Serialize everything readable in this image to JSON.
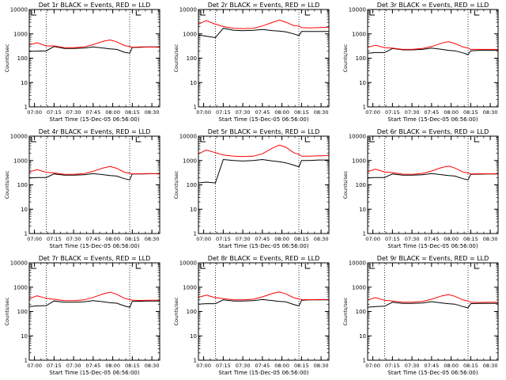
{
  "colors": {
    "background": "#ffffff",
    "axes": "#000000",
    "events": "#000000",
    "lld": "#ff0000"
  },
  "chart_data": [
    {
      "type": "line",
      "title": "Det 1r BLACK = Events, RED = LLD",
      "xlabel": "Start Time (15-Dec-05 06:56:00)",
      "ylabel": "Counts/sec",
      "xticks": [
        "07:00",
        "07:15",
        "07:30",
        "07:45",
        "08:00",
        "08:15",
        "08:30"
      ],
      "yticks": [
        "1",
        "10",
        "100",
        "1000",
        "10000"
      ],
      "ylim": [
        1,
        10000
      ],
      "ylog": true,
      "xlim": [
        "06:56",
        "08:36"
      ],
      "markers_x": [
        "07:09",
        "08:13"
      ],
      "x": [
        "06:56",
        "07:02",
        "07:09",
        "07:15",
        "07:23",
        "07:30",
        "07:38",
        "07:45",
        "07:53",
        "07:58",
        "08:03",
        "08:09",
        "08:13",
        "08:15",
        "08:21",
        "08:28",
        "08:36"
      ],
      "series": [
        {
          "name": "BLACK = Events",
          "values": [
            190,
            195,
            200,
            300,
            250,
            250,
            260,
            290,
            260,
            240,
            230,
            175,
            160,
            275,
            280,
            290,
            290
          ]
        },
        {
          "name": "RED = LLD",
          "values": [
            350,
            430,
            320,
            320,
            270,
            270,
            290,
            360,
            500,
            560,
            470,
            330,
            300,
            280,
            290,
            290,
            280
          ]
        }
      ]
    },
    {
      "type": "line",
      "title": "Det 2r BLACK = Events, RED = LLD",
      "xlabel": "Start Time (15-Dec-05 06:56:00)",
      "ylabel": "Counts/sec",
      "xticks": [
        "07:00",
        "07:15",
        "07:30",
        "07:45",
        "08:00",
        "08:15",
        "08:30"
      ],
      "yticks": [
        "1",
        "10",
        "100",
        "1000",
        "10000"
      ],
      "ylim": [
        1,
        10000
      ],
      "ylog": true,
      "xlim": [
        "06:56",
        "08:36"
      ],
      "markers_x": [
        "07:09",
        "08:13"
      ],
      "x": [
        "06:56",
        "07:02",
        "07:09",
        "07:15",
        "07:23",
        "07:30",
        "07:38",
        "07:45",
        "07:53",
        "07:58",
        "08:03",
        "08:09",
        "08:13",
        "08:15",
        "08:21",
        "08:28",
        "08:36"
      ],
      "series": [
        {
          "name": "BLACK = Events",
          "values": [
            900,
            800,
            700,
            1700,
            1400,
            1350,
            1400,
            1500,
            1350,
            1300,
            1200,
            1000,
            850,
            1250,
            1250,
            1250,
            1250
          ]
        },
        {
          "name": "RED = LLD",
          "values": [
            2500,
            3500,
            2500,
            2000,
            1700,
            1650,
            1700,
            2100,
            3000,
            3700,
            3000,
            2200,
            2100,
            1800,
            1750,
            1800,
            1900
          ]
        }
      ]
    },
    {
      "type": "line",
      "title": "Det 3r BLACK = Events, RED = LLD",
      "xlabel": "Start Time (15-Dec-05 06:56:00)",
      "ylabel": "Counts/sec",
      "xticks": [
        "07:00",
        "07:15",
        "07:30",
        "07:45",
        "08:00",
        "08:15",
        "08:30"
      ],
      "yticks": [
        "1",
        "10",
        "100",
        "1000",
        "10000"
      ],
      "ylim": [
        1,
        10000
      ],
      "ylog": true,
      "xlim": [
        "06:56",
        "08:36"
      ],
      "markers_x": [
        "07:09",
        "08:13"
      ],
      "x": [
        "06:56",
        "07:02",
        "07:09",
        "07:15",
        "07:23",
        "07:30",
        "07:38",
        "07:45",
        "07:53",
        "07:58",
        "08:03",
        "08:09",
        "08:13",
        "08:15",
        "08:21",
        "08:28",
        "08:36"
      ],
      "series": [
        {
          "name": "BLACK = Events",
          "values": [
            160,
            170,
            170,
            250,
            220,
            220,
            230,
            260,
            230,
            210,
            200,
            165,
            140,
            200,
            210,
            210,
            210
          ]
        },
        {
          "name": "RED = LLD",
          "values": [
            280,
            340,
            270,
            260,
            230,
            230,
            250,
            300,
            420,
            480,
            400,
            290,
            260,
            230,
            230,
            230,
            230
          ]
        }
      ]
    },
    {
      "type": "line",
      "title": "Det 4r BLACK = Events, RED = LLD",
      "xlabel": "Start Time (15-Dec-05 06:56:00)",
      "ylabel": "Counts/sec",
      "xticks": [
        "07:00",
        "07:15",
        "07:30",
        "07:45",
        "08:00",
        "08:15",
        "08:30"
      ],
      "yticks": [
        "1",
        "10",
        "100",
        "1000",
        "10000"
      ],
      "ylim": [
        1,
        10000
      ],
      "ylog": true,
      "xlim": [
        "06:56",
        "08:36"
      ],
      "markers_x": [
        "07:09",
        "08:13"
      ],
      "x": [
        "06:56",
        "07:02",
        "07:09",
        "07:15",
        "07:23",
        "07:30",
        "07:38",
        "07:45",
        "07:53",
        "07:58",
        "08:03",
        "08:09",
        "08:13",
        "08:15",
        "08:21",
        "08:28",
        "08:36"
      ],
      "series": [
        {
          "name": "BLACK = Events",
          "values": [
            190,
            200,
            200,
            280,
            250,
            250,
            260,
            290,
            260,
            240,
            230,
            180,
            160,
            280,
            280,
            285,
            290
          ]
        },
        {
          "name": "RED = LLD",
          "values": [
            340,
            420,
            330,
            310,
            270,
            270,
            290,
            360,
            500,
            570,
            480,
            330,
            300,
            280,
            285,
            290,
            280
          ]
        }
      ]
    },
    {
      "type": "line",
      "title": "Det 5r BLACK = Events, RED = LLD",
      "xlabel": "Start Time (15-Dec-05 06:56:00)",
      "ylabel": "Counts/sec",
      "xticks": [
        "07:00",
        "07:15",
        "07:30",
        "07:45",
        "08:00",
        "08:15",
        "08:30"
      ],
      "yticks": [
        "1",
        "10",
        "100",
        "1000",
        "10000"
      ],
      "ylim": [
        1,
        10000
      ],
      "ylog": true,
      "xlim": [
        "06:56",
        "08:36"
      ],
      "markers_x": [
        "07:09",
        "08:13"
      ],
      "x": [
        "06:56",
        "07:02",
        "07:09",
        "07:15",
        "07:23",
        "07:30",
        "07:38",
        "07:45",
        "07:53",
        "07:58",
        "08:03",
        "08:09",
        "08:13",
        "08:15",
        "08:21",
        "08:28",
        "08:36"
      ],
      "series": [
        {
          "name": "BLACK = Events",
          "values": [
            120,
            130,
            120,
            1100,
            1000,
            950,
            1000,
            1100,
            950,
            900,
            800,
            650,
            550,
            1000,
            1000,
            1050,
            1050
          ]
        },
        {
          "name": "RED = LLD",
          "values": [
            1900,
            2700,
            2100,
            1700,
            1500,
            1450,
            1500,
            1900,
            3300,
            4300,
            3500,
            2100,
            1800,
            1500,
            1500,
            1550,
            1600
          ]
        }
      ]
    },
    {
      "type": "line",
      "title": "Det 6r BLACK = Events, RED = LLD",
      "xlabel": "Start Time (15-Dec-05 06:56:00)",
      "ylabel": "Counts/sec",
      "xticks": [
        "07:00",
        "07:15",
        "07:30",
        "07:45",
        "08:00",
        "08:15",
        "08:30"
      ],
      "yticks": [
        "1",
        "10",
        "100",
        "1000",
        "10000"
      ],
      "ylim": [
        1,
        10000
      ],
      "ylog": true,
      "xlim": [
        "06:56",
        "08:36"
      ],
      "markers_x": [
        "07:09",
        "08:13"
      ],
      "x": [
        "06:56",
        "07:02",
        "07:09",
        "07:15",
        "07:23",
        "07:30",
        "07:38",
        "07:45",
        "07:53",
        "07:58",
        "08:03",
        "08:09",
        "08:13",
        "08:15",
        "08:21",
        "08:28",
        "08:36"
      ],
      "series": [
        {
          "name": "BLACK = Events",
          "values": [
            190,
            200,
            200,
            280,
            250,
            250,
            260,
            290,
            260,
            240,
            230,
            180,
            160,
            270,
            275,
            280,
            280
          ]
        },
        {
          "name": "RED = LLD",
          "values": [
            350,
            440,
            340,
            320,
            275,
            270,
            295,
            370,
            520,
            590,
            490,
            340,
            310,
            280,
            285,
            285,
            280
          ]
        }
      ]
    },
    {
      "type": "line",
      "title": "Det 7r BLACK = Events, RED = LLD",
      "xlabel": "Start Time (15-Dec-05 06:56:00)",
      "ylabel": "Counts/sec",
      "xticks": [
        "07:00",
        "07:15",
        "07:30",
        "07:45",
        "08:00",
        "08:15",
        "08:30"
      ],
      "yticks": [
        "1",
        "10",
        "100",
        "1000",
        "10000"
      ],
      "ylim": [
        1,
        10000
      ],
      "ylog": true,
      "xlim": [
        "06:56",
        "08:36"
      ],
      "markers_x": [
        "07:09",
        "08:13"
      ],
      "x": [
        "06:56",
        "07:02",
        "07:09",
        "07:15",
        "07:23",
        "07:30",
        "07:38",
        "07:45",
        "07:53",
        "07:58",
        "08:03",
        "08:09",
        "08:13",
        "08:15",
        "08:21",
        "08:28",
        "08:36"
      ],
      "series": [
        {
          "name": "BLACK = Events",
          "values": [
            160,
            170,
            175,
            270,
            240,
            240,
            250,
            280,
            250,
            230,
            220,
            170,
            150,
            260,
            265,
            270,
            270
          ]
        },
        {
          "name": "RED = LLD",
          "values": [
            340,
            440,
            350,
            320,
            280,
            280,
            300,
            380,
            540,
            620,
            510,
            350,
            310,
            290,
            285,
            290,
            290
          ]
        }
      ]
    },
    {
      "type": "line",
      "title": "Det 8r BLACK = Events, RED = LLD",
      "xlabel": "Start Time (15-Dec-05 06:56:00)",
      "ylabel": "Counts/sec",
      "xticks": [
        "07:00",
        "07:15",
        "07:30",
        "07:45",
        "08:00",
        "08:15",
        "08:30"
      ],
      "yticks": [
        "1",
        "10",
        "100",
        "1000",
        "10000"
      ],
      "ylim": [
        1,
        10000
      ],
      "ylog": true,
      "xlim": [
        "06:56",
        "08:36"
      ],
      "markers_x": [
        "07:09",
        "08:13"
      ],
      "x": [
        "06:56",
        "07:02",
        "07:09",
        "07:15",
        "07:23",
        "07:30",
        "07:38",
        "07:45",
        "07:53",
        "07:58",
        "08:03",
        "08:09",
        "08:13",
        "08:15",
        "08:21",
        "08:28",
        "08:36"
      ],
      "series": [
        {
          "name": "BLACK = Events",
          "values": [
            200,
            210,
            210,
            300,
            270,
            270,
            280,
            310,
            280,
            260,
            250,
            195,
            170,
            290,
            300,
            300,
            300
          ]
        },
        {
          "name": "RED = LLD",
          "values": [
            380,
            470,
            370,
            340,
            300,
            300,
            320,
            400,
            560,
            640,
            530,
            370,
            330,
            310,
            305,
            310,
            310
          ]
        }
      ]
    },
    {
      "type": "line",
      "title": "Det 9r BLACK = Events, RED = LLD",
      "xlabel": "Start Time (15-Dec-05 06:56:00)",
      "ylabel": "Counts/sec",
      "xticks": [
        "07:00",
        "07:15",
        "07:30",
        "07:45",
        "08:00",
        "08:15",
        "08:30"
      ],
      "yticks": [
        "1",
        "10",
        "100",
        "1000",
        "10000"
      ],
      "ylim": [
        1,
        10000
      ],
      "ylog": true,
      "xlim": [
        "06:56",
        "08:36"
      ],
      "markers_x": [
        "07:09",
        "08:13"
      ],
      "x": [
        "06:56",
        "07:02",
        "07:09",
        "07:15",
        "07:23",
        "07:30",
        "07:38",
        "07:45",
        "07:53",
        "07:58",
        "08:03",
        "08:09",
        "08:13",
        "08:15",
        "08:21",
        "08:28",
        "08:36"
      ],
      "series": [
        {
          "name": "BLACK = Events",
          "values": [
            150,
            160,
            165,
            240,
            215,
            215,
            225,
            255,
            225,
            210,
            200,
            160,
            140,
            210,
            215,
            215,
            215
          ]
        },
        {
          "name": "RED = LLD",
          "values": [
            300,
            370,
            290,
            270,
            240,
            240,
            260,
            320,
            440,
            500,
            420,
            300,
            270,
            240,
            235,
            240,
            240
          ]
        }
      ]
    }
  ]
}
